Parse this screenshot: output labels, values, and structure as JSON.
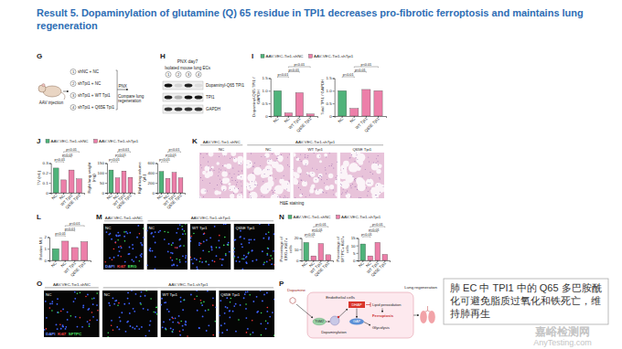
{
  "title": "Result 5. Dopaminylation of glutamine (Q) 65 residue in TPI1 decreases pro-fibrotic ferroptosis and maintains lung regeneration",
  "panels": {
    "G": {
      "letter": "G",
      "injection": "AAV injection",
      "groups": [
        {
          "number": "1",
          "label": "shNC + NC"
        },
        {
          "number": "2",
          "label": "shTpi1 + NC"
        },
        {
          "number": "3",
          "label": "shTpi1 + WT Tpi1"
        },
        {
          "number": "4",
          "label": "shTpi1 + Q65E Tpi1"
        }
      ],
      "surgery": "PNX",
      "outcome": "Compare lung regeneration"
    },
    "H": {
      "letter": "H",
      "header": "PNX day7",
      "subheader": "Isolated mouse lung ECs",
      "lanes": [
        "1",
        "2",
        "3",
        "4"
      ],
      "bands": [
        "Dopaminyl-Q65 TPI1",
        "TPI1",
        "GAPDH"
      ]
    },
    "I": {
      "letter": "I",
      "key": [
        {
          "name": "AAV-VEC-Tie1-shNC",
          "color": "#4fb37a"
        },
        {
          "name": "AAV-VEC-Tie1-shTpi1",
          "color": "#ec7fa9"
        }
      ]
    },
    "J": {
      "letter": "J",
      "key": [
        {
          "name": "AAV-VEC-Tie1-shNC",
          "color": "#4fb37a"
        },
        {
          "name": "AAV-VEC-Tie1-shTpi1",
          "color": "#ec7fa9"
        }
      ]
    },
    "K": {
      "letter": "K",
      "groups": [
        "AAV-VEC-Tie1-shNC",
        "AAV-VEC-Tie1-shTpi1"
      ],
      "tiles": [
        "NC",
        "NC",
        "WT Tpi1",
        "Q65E Tpi1"
      ],
      "caption": "H&E staining"
    },
    "L": {
      "letter": "L"
    },
    "M": {
      "letter": "M",
      "groups": [
        "AAV-VEC-Tie1-shNC",
        "AAV-VEC-Tie1-shTpi1"
      ],
      "tiles": [
        "NC",
        "NC",
        "WT Tpi1",
        "Q65E Tpi1"
      ],
      "stains": [
        "DAPI",
        "Ki67",
        "ERG"
      ]
    },
    "N": {
      "letter": "N",
      "key": [
        {
          "name": "AAV-VEC-Tie1-shNC",
          "color": "#4fb37a"
        },
        {
          "name": "AAV-VEC-Tie1-shTpi1",
          "color": "#ec7fa9"
        }
      ]
    },
    "O": {
      "letter": "O",
      "groups": [
        "AAV-VEC-Tie1-shNC",
        "AAV-VEC-Tie1-shTpi1"
      ],
      "tiles": [
        "NC",
        "NC",
        "WT Tpi1",
        "Q65E Tpi1"
      ],
      "stains": [
        "DAPI",
        "Ki67",
        "SFTPC"
      ]
    },
    "P": {
      "letter": "P",
      "labels": {
        "dopamine": "Dopamine",
        "cell": "Endothelial cells",
        "enzyme": "TGM2",
        "modification": "Dopaminylation",
        "substrate": "DHAP",
        "product": "GAP",
        "lipid": "Lipid peroxidation",
        "death": "Ferroptosis",
        "pathway": "Glycolysis",
        "outcome": "Lung regeneration"
      }
    }
  },
  "summary": "肺 EC 中 TPI1 中的 Q65 多巴胺酰化可避免脂质过氧化和铁死亡，维持肺再生",
  "watermark": [
    "嘉峪检测网",
    "AnyTesting.com"
  ],
  "chart_data": [
    {
      "type": "bar",
      "ylabel": "Dopaminyl-Q65 TPI1 / GAPDH",
      "categories": [
        "NC",
        "NC",
        "WT Tpi1",
        "Q65E Tpi1"
      ],
      "values": [
        1.0,
        0.12,
        0.92,
        0.08
      ],
      "colors": [
        "#4fb37a",
        "#ec7fa9",
        "#ec7fa9",
        "#ec7fa9"
      ],
      "ylim": [
        0,
        1.5
      ],
      "yticks": [
        0,
        0.5,
        {
          "value": 1,
          "label": "1.0"
        },
        1.5
      ],
      "annotations": [
        "p<0.01",
        "p<0.01",
        "p<0.01"
      ]
    },
    {
      "type": "bar",
      "ylabel": "Total TPI1 / GAPDH",
      "categories": [
        "NC",
        "NC",
        "WT Tpi1",
        "Q65E Tpi1"
      ],
      "values": [
        1.0,
        0.3,
        1.05,
        1.0
      ],
      "colors": [
        "#4fb37a",
        "#ec7fa9",
        "#ec7fa9",
        "#ec7fa9"
      ],
      "ylim": [
        0,
        1.5
      ],
      "yticks": [
        0,
        0.5,
        {
          "value": 1,
          "label": "1.0"
        },
        1.5
      ],
      "annotations": [
        "p<0.01",
        "p<0.01",
        "p<0.01"
      ]
    },
    {
      "type": "bar",
      "ylabel": "TV (mL)",
      "categories": [
        "NC",
        "NC",
        "WT Tpi1",
        "Q65E Tpi1"
      ],
      "values": [
        0.25,
        0.13,
        0.23,
        0.14
      ],
      "colors": [
        "#4fb37a",
        "#ec7fa9",
        "#ec7fa9",
        "#ec7fa9"
      ],
      "ylim": [
        0,
        0.3
      ],
      "yticks": [
        0,
        0.1,
        0.2,
        0.3
      ],
      "annotations": [
        "p<0.01",
        "p<0.01",
        "p<0.01"
      ]
    },
    {
      "type": "bar",
      "ylabel": "Right lung weight (mg)",
      "categories": [
        "NC",
        "NC",
        "WT Tpi1",
        "Q65E Tpi1"
      ],
      "values": [
        115,
        75,
        110,
        78
      ],
      "colors": [
        "#4fb37a",
        "#ec7fa9",
        "#ec7fa9",
        "#ec7fa9"
      ],
      "ylim": [
        0,
        150
      ],
      "yticks": [
        0,
        50,
        100,
        150
      ],
      "annotations": [
        "p<0.01",
        "p<0.01",
        "p<0.01"
      ]
    },
    {
      "type": "bar",
      "ylabel": "Right lung volume (μL)",
      "categories": [
        "NC",
        "NC",
        "WT Tpi1",
        "Q65E Tpi1"
      ],
      "values": [
        430,
        290,
        410,
        300
      ],
      "colors": [
        "#4fb37a",
        "#ec7fa9",
        "#ec7fa9",
        "#ec7fa9"
      ],
      "ylim": [
        0,
        600
      ],
      "yticks": [
        0,
        200,
        400,
        600
      ],
      "annotations": [
        "p<0.01",
        "p<0.01",
        "p<0.01"
      ]
    },
    {
      "type": "bar",
      "ylabel": "Relative MLI",
      "categories": [
        "NC",
        "NC",
        "WT Tpi1",
        "Q65E Tpi1"
      ],
      "values": [
        1.0,
        1.65,
        1.1,
        1.6
      ],
      "colors": [
        "#4fb37a",
        "#ec7fa9",
        "#ec7fa9",
        "#ec7fa9"
      ],
      "ylim": [
        0,
        2
      ],
      "yticks": [
        0,
        1,
        2
      ],
      "annotations": [
        "p<0.01",
        "p<0.01",
        "p<0.01"
      ]
    },
    {
      "type": "bar",
      "ylabel": "Percentage of ERG+ Ki67+ cells",
      "categories": [
        "NC",
        "NC",
        "WT Tpi1",
        "Q65E Tpi1"
      ],
      "values": [
        16,
        4,
        15,
        5
      ],
      "colors": [
        "#4fb37a",
        "#ec7fa9",
        "#ec7fa9",
        "#ec7fa9"
      ],
      "ylim": [
        0,
        20
      ],
      "yticks": [
        0,
        10,
        20
      ],
      "annotations": [
        "p<0.01",
        "p<0.01",
        "p<0.01"
      ]
    },
    {
      "type": "bar",
      "ylabel": "Percentage of SFTPC+ Ki67+ cells",
      "categories": [
        "NC",
        "NC",
        "WT Tpi1",
        "Q65E Tpi1"
      ],
      "values": [
        11,
        3,
        12,
        4
      ],
      "colors": [
        "#4fb37a",
        "#ec7fa9",
        "#ec7fa9",
        "#ec7fa9"
      ],
      "ylim": [
        0,
        15
      ],
      "yticks": [
        0,
        5,
        10,
        15
      ],
      "annotations": [
        "p<0.01",
        "p<0.01",
        "p<0.01"
      ]
    }
  ]
}
